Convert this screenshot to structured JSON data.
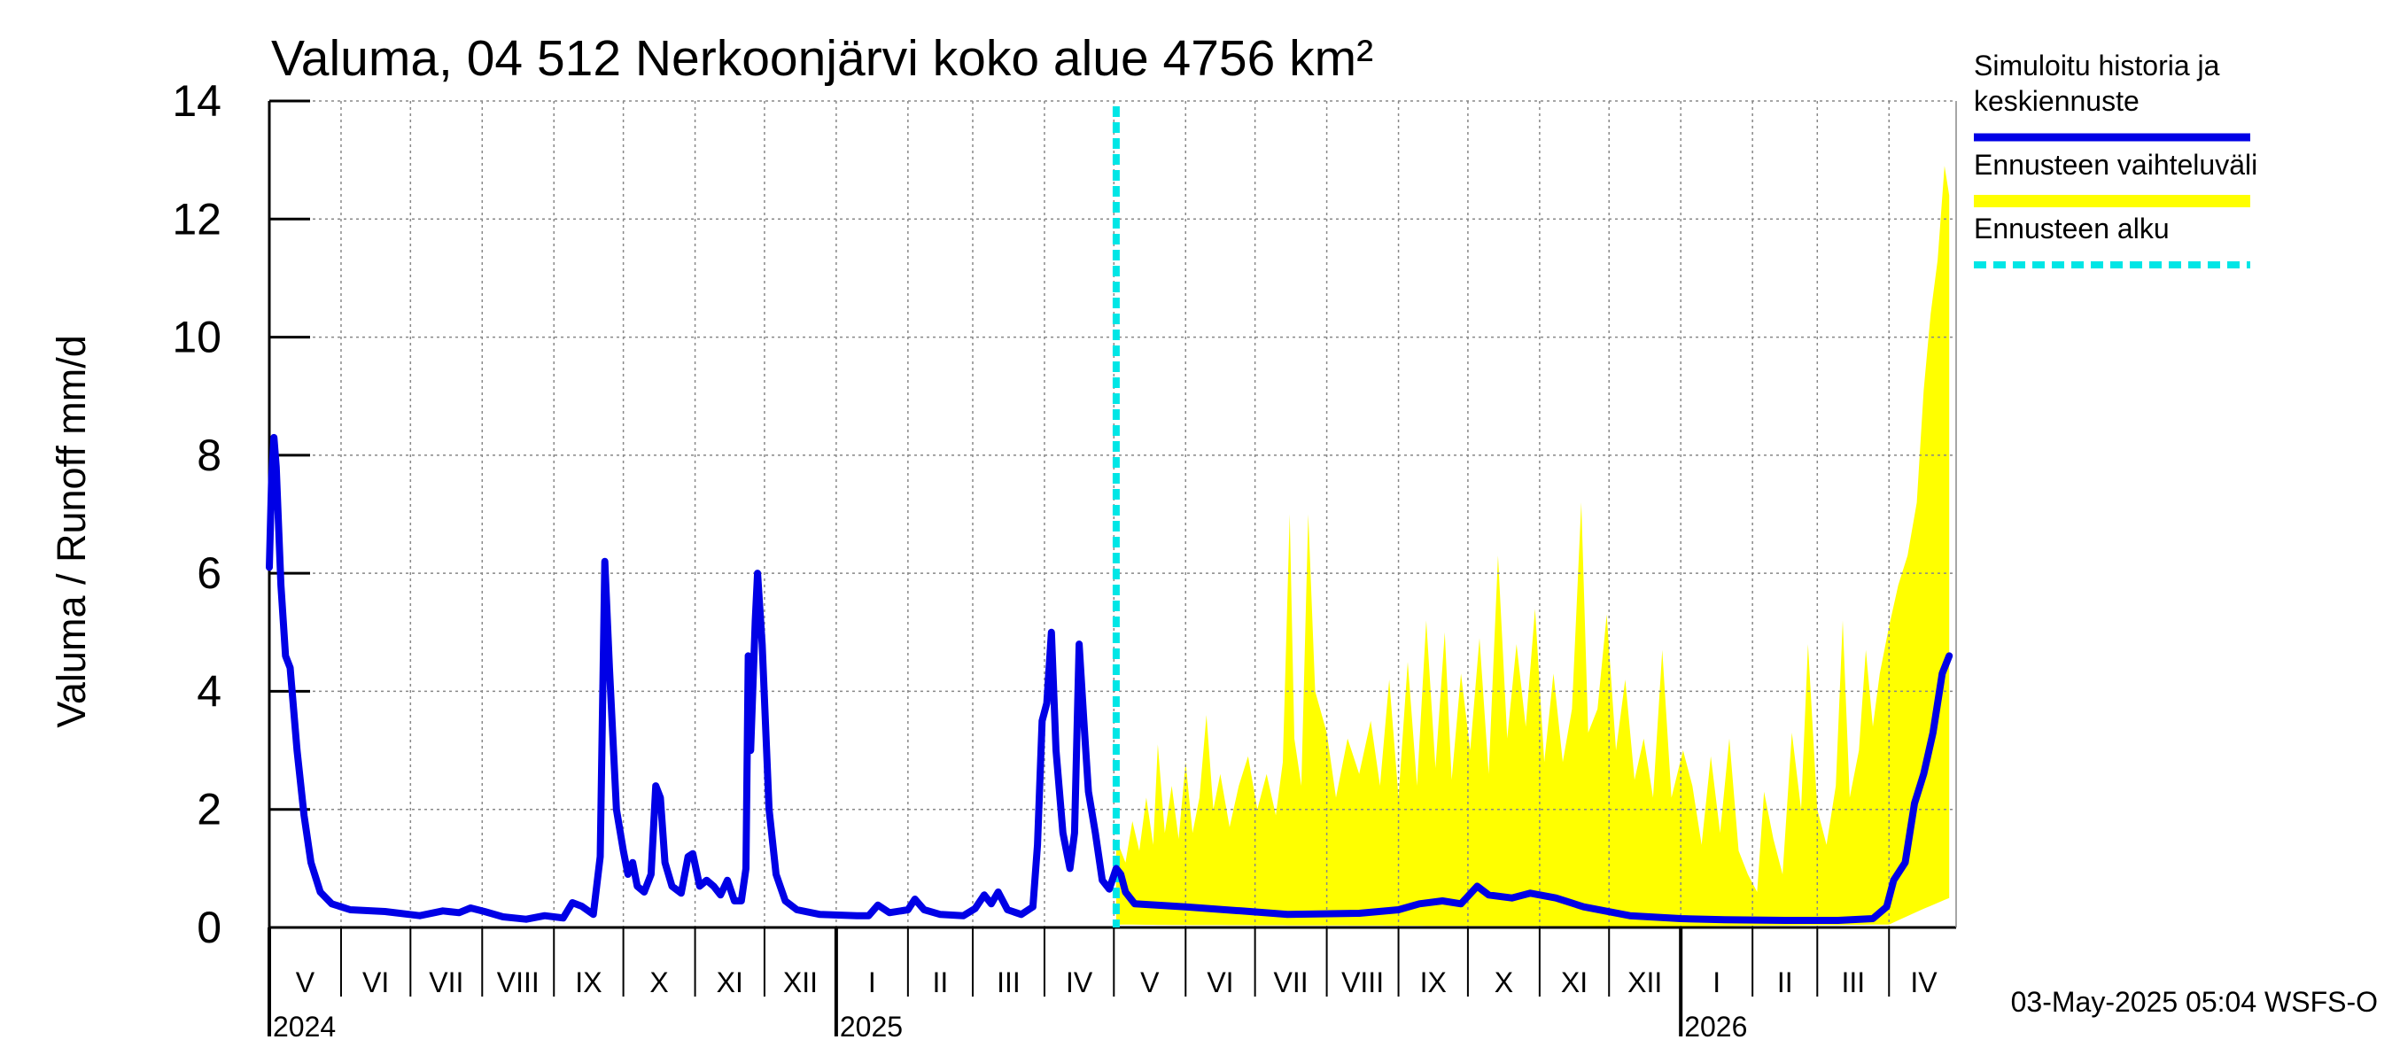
{
  "chart_data": {
    "type": "line",
    "title": "Valuma, 04 512 Nerkoonjärvi koko alue 4756 km²",
    "ylabel": "Valuma / Runoff    mm/d",
    "ylim": [
      0,
      14
    ],
    "yticks": [
      "0",
      "2",
      "4",
      "6",
      "8",
      "10",
      "12",
      "14"
    ],
    "xlim": [
      "2024-05-01",
      "2026-04-30"
    ],
    "grid": true,
    "month_labels": [
      {
        "label": "V",
        "start": "2024-05-01",
        "end": "2024-06-01"
      },
      {
        "label": "VI",
        "start": "2024-06-01",
        "end": "2024-07-01"
      },
      {
        "label": "VII",
        "start": "2024-07-01",
        "end": "2024-08-01"
      },
      {
        "label": "VIII",
        "start": "2024-08-01",
        "end": "2024-09-01"
      },
      {
        "label": "IX",
        "start": "2024-09-01",
        "end": "2024-10-01"
      },
      {
        "label": "X",
        "start": "2024-10-01",
        "end": "2024-11-01"
      },
      {
        "label": "XI",
        "start": "2024-11-01",
        "end": "2024-12-01"
      },
      {
        "label": "XII",
        "start": "2024-12-01",
        "end": "2025-01-01"
      },
      {
        "label": "I",
        "start": "2025-01-01",
        "end": "2025-02-01"
      },
      {
        "label": "II",
        "start": "2025-02-01",
        "end": "2025-03-01"
      },
      {
        "label": "III",
        "start": "2025-03-01",
        "end": "2025-04-01"
      },
      {
        "label": "IV",
        "start": "2025-04-01",
        "end": "2025-05-01"
      },
      {
        "label": "V",
        "start": "2025-05-01",
        "end": "2025-06-01"
      },
      {
        "label": "VI",
        "start": "2025-06-01",
        "end": "2025-07-01"
      },
      {
        "label": "VII",
        "start": "2025-07-01",
        "end": "2025-08-01"
      },
      {
        "label": "VIII",
        "start": "2025-08-01",
        "end": "2025-09-01"
      },
      {
        "label": "IX",
        "start": "2025-09-01",
        "end": "2025-10-01"
      },
      {
        "label": "X",
        "start": "2025-10-01",
        "end": "2025-11-01"
      },
      {
        "label": "XI",
        "start": "2025-11-01",
        "end": "2025-12-01"
      },
      {
        "label": "XII",
        "start": "2025-12-01",
        "end": "2026-01-01"
      },
      {
        "label": "I",
        "start": "2026-01-01",
        "end": "2026-02-01"
      },
      {
        "label": "II",
        "start": "2026-02-01",
        "end": "2026-03-01"
      },
      {
        "label": "III",
        "start": "2026-03-01",
        "end": "2026-04-01"
      },
      {
        "label": "IV",
        "start": "2026-04-01",
        "end": "2026-05-01"
      }
    ],
    "year_labels": [
      {
        "label": "2024",
        "date": "2024-05-01"
      },
      {
        "label": "2025",
        "date": "2025-01-01"
      },
      {
        "label": "2026",
        "date": "2026-01-01"
      }
    ],
    "forecast_start": "2025-05-02",
    "legend": [
      {
        "label_lines": [
          "Simuloitu historia ja",
          "keskiennuste"
        ],
        "color": "#0000e6",
        "style": "line"
      },
      {
        "label_lines": [
          "Ennusteen vaihteluväli"
        ],
        "color": "#ffff00",
        "style": "band"
      },
      {
        "label_lines": [
          "Ennusteen alku"
        ],
        "color": "#00e6e6",
        "style": "dashed"
      }
    ],
    "legend_position": "right",
    "colors": {
      "history": "#0000e6",
      "band": "#ffff00",
      "forecast_start": "#00e6e6",
      "grid": "#888888"
    },
    "series": [
      {
        "name": "Simuloitu historia ja keskiennuste",
        "points": [
          [
            "2024-05-01",
            6.1
          ],
          [
            "2024-05-02",
            7.6
          ],
          [
            "2024-05-03",
            8.3
          ],
          [
            "2024-05-04",
            7.8
          ],
          [
            "2024-05-06",
            5.8
          ],
          [
            "2024-05-08",
            4.6
          ],
          [
            "2024-05-10",
            4.4
          ],
          [
            "2024-05-13",
            3.0
          ],
          [
            "2024-05-16",
            1.9
          ],
          [
            "2024-05-19",
            1.1
          ],
          [
            "2024-05-23",
            0.6
          ],
          [
            "2024-05-28",
            0.4
          ],
          [
            "2024-06-05",
            0.3
          ],
          [
            "2024-06-20",
            0.27
          ],
          [
            "2024-07-05",
            0.2
          ],
          [
            "2024-07-15",
            0.28
          ],
          [
            "2024-07-22",
            0.25
          ],
          [
            "2024-07-27",
            0.33
          ],
          [
            "2024-08-02",
            0.27
          ],
          [
            "2024-08-10",
            0.18
          ],
          [
            "2024-08-20",
            0.14
          ],
          [
            "2024-08-28",
            0.2
          ],
          [
            "2024-09-05",
            0.16
          ],
          [
            "2024-09-09",
            0.42
          ],
          [
            "2024-09-13",
            0.36
          ],
          [
            "2024-09-18",
            0.22
          ],
          [
            "2024-09-21",
            1.2
          ],
          [
            "2024-09-23",
            6.2
          ],
          [
            "2024-09-25",
            4.4
          ],
          [
            "2024-09-28",
            2.0
          ],
          [
            "2024-10-01",
            1.3
          ],
          [
            "2024-10-03",
            0.9
          ],
          [
            "2024-10-05",
            1.1
          ],
          [
            "2024-10-07",
            0.7
          ],
          [
            "2024-10-10",
            0.6
          ],
          [
            "2024-10-13",
            0.9
          ],
          [
            "2024-10-15",
            2.4
          ],
          [
            "2024-10-17",
            2.2
          ],
          [
            "2024-10-19",
            1.1
          ],
          [
            "2024-10-22",
            0.7
          ],
          [
            "2024-10-26",
            0.58
          ],
          [
            "2024-10-29",
            1.2
          ],
          [
            "2024-10-31",
            1.25
          ],
          [
            "2024-11-03",
            0.7
          ],
          [
            "2024-11-06",
            0.8
          ],
          [
            "2024-11-09",
            0.7
          ],
          [
            "2024-11-12",
            0.55
          ],
          [
            "2024-11-15",
            0.8
          ],
          [
            "2024-11-18",
            0.45
          ],
          [
            "2024-11-21",
            0.45
          ],
          [
            "2024-11-23",
            1.0
          ],
          [
            "2024-11-24",
            4.6
          ],
          [
            "2024-11-25",
            3.0
          ],
          [
            "2024-11-27",
            5.2
          ],
          [
            "2024-11-28",
            6.0
          ],
          [
            "2024-11-30",
            4.8
          ],
          [
            "2024-12-03",
            2.0
          ],
          [
            "2024-12-06",
            0.9
          ],
          [
            "2024-12-10",
            0.45
          ],
          [
            "2024-12-15",
            0.3
          ],
          [
            "2024-12-25",
            0.22
          ],
          [
            "2025-01-10",
            0.2
          ],
          [
            "2025-01-15",
            0.2
          ],
          [
            "2025-01-19",
            0.38
          ],
          [
            "2025-01-24",
            0.25
          ],
          [
            "2025-02-01",
            0.3
          ],
          [
            "2025-02-04",
            0.48
          ],
          [
            "2025-02-08",
            0.3
          ],
          [
            "2025-02-15",
            0.22
          ],
          [
            "2025-02-25",
            0.2
          ],
          [
            "2025-03-02",
            0.32
          ],
          [
            "2025-03-06",
            0.55
          ],
          [
            "2025-03-09",
            0.4
          ],
          [
            "2025-03-12",
            0.6
          ],
          [
            "2025-03-16",
            0.3
          ],
          [
            "2025-03-22",
            0.22
          ],
          [
            "2025-03-27",
            0.35
          ],
          [
            "2025-03-29",
            1.4
          ],
          [
            "2025-03-31",
            3.5
          ],
          [
            "2025-04-02",
            3.8
          ],
          [
            "2025-04-04",
            5.0
          ],
          [
            "2025-04-06",
            3.0
          ],
          [
            "2025-04-09",
            1.6
          ],
          [
            "2025-04-12",
            1.0
          ],
          [
            "2025-04-14",
            1.6
          ],
          [
            "2025-04-16",
            4.8
          ],
          [
            "2025-04-18",
            3.5
          ],
          [
            "2025-04-20",
            2.3
          ],
          [
            "2025-04-23",
            1.6
          ],
          [
            "2025-04-26",
            0.8
          ],
          [
            "2025-04-29",
            0.65
          ],
          [
            "2025-05-02",
            1.0
          ],
          [
            "2025-05-04",
            0.9
          ],
          [
            "2025-05-06",
            0.6
          ],
          [
            "2025-05-10",
            0.4
          ],
          [
            "2025-06-01",
            0.35
          ],
          [
            "2025-06-25",
            0.28
          ],
          [
            "2025-07-15",
            0.22
          ],
          [
            "2025-08-15",
            0.24
          ],
          [
            "2025-09-01",
            0.3
          ],
          [
            "2025-09-10",
            0.4
          ],
          [
            "2025-09-20",
            0.45
          ],
          [
            "2025-09-28",
            0.4
          ],
          [
            "2025-10-05",
            0.7
          ],
          [
            "2025-10-10",
            0.55
          ],
          [
            "2025-10-20",
            0.5
          ],
          [
            "2025-10-28",
            0.58
          ],
          [
            "2025-11-08",
            0.5
          ],
          [
            "2025-11-20",
            0.35
          ],
          [
            "2025-12-10",
            0.2
          ],
          [
            "2026-01-01",
            0.15
          ],
          [
            "2026-01-20",
            0.13
          ],
          [
            "2026-02-15",
            0.12
          ],
          [
            "2026-03-10",
            0.12
          ],
          [
            "2026-03-25",
            0.15
          ],
          [
            "2026-03-31",
            0.35
          ],
          [
            "2026-04-03",
            0.8
          ],
          [
            "2026-04-08",
            1.1
          ],
          [
            "2026-04-12",
            2.1
          ],
          [
            "2026-04-16",
            2.6
          ],
          [
            "2026-04-20",
            3.3
          ],
          [
            "2026-04-24",
            4.3
          ],
          [
            "2026-04-27",
            4.6
          ]
        ]
      }
    ],
    "band": {
      "name": "Ennusteen vaihteluväli",
      "lower": [
        [
          "2025-05-02",
          0.05
        ],
        [
          "2025-06-01",
          0.04
        ],
        [
          "2025-09-01",
          0.03
        ],
        [
          "2026-01-01",
          0.02
        ],
        [
          "2026-04-01",
          0.05
        ],
        [
          "2026-04-15",
          0.3
        ],
        [
          "2026-04-27",
          0.5
        ]
      ],
      "upper": [
        [
          "2025-05-02",
          1.5
        ],
        [
          "2025-05-06",
          1.1
        ],
        [
          "2025-05-09",
          1.8
        ],
        [
          "2025-05-12",
          1.3
        ],
        [
          "2025-05-15",
          2.2
        ],
        [
          "2025-05-18",
          1.4
        ],
        [
          "2025-05-20",
          3.1
        ],
        [
          "2025-05-23",
          1.6
        ],
        [
          "2025-05-26",
          2.4
        ],
        [
          "2025-05-29",
          1.5
        ],
        [
          "2025-06-01",
          2.8
        ],
        [
          "2025-06-04",
          1.6
        ],
        [
          "2025-06-07",
          2.2
        ],
        [
          "2025-06-10",
          3.6
        ],
        [
          "2025-06-13",
          2.0
        ],
        [
          "2025-06-16",
          2.6
        ],
        [
          "2025-06-20",
          1.7
        ],
        [
          "2025-06-24",
          2.4
        ],
        [
          "2025-06-28",
          2.9
        ],
        [
          "2025-07-02",
          2.0
        ],
        [
          "2025-07-06",
          2.6
        ],
        [
          "2025-07-10",
          1.9
        ],
        [
          "2025-07-13",
          2.8
        ],
        [
          "2025-07-16",
          7.0
        ],
        [
          "2025-07-18",
          3.2
        ],
        [
          "2025-07-21",
          2.4
        ],
        [
          "2025-07-24",
          7.0
        ],
        [
          "2025-07-27",
          4.0
        ],
        [
          "2025-08-01",
          3.3
        ],
        [
          "2025-08-05",
          2.2
        ],
        [
          "2025-08-10",
          3.2
        ],
        [
          "2025-08-15",
          2.6
        ],
        [
          "2025-08-20",
          3.5
        ],
        [
          "2025-08-24",
          2.4
        ],
        [
          "2025-08-28",
          4.2
        ],
        [
          "2025-09-01",
          2.2
        ],
        [
          "2025-09-05",
          4.5
        ],
        [
          "2025-09-09",
          2.4
        ],
        [
          "2025-09-13",
          5.2
        ],
        [
          "2025-09-17",
          2.7
        ],
        [
          "2025-09-21",
          5.0
        ],
        [
          "2025-09-24",
          2.5
        ],
        [
          "2025-09-28",
          4.3
        ],
        [
          "2025-10-02",
          3.0
        ],
        [
          "2025-10-06",
          4.9
        ],
        [
          "2025-10-10",
          2.6
        ],
        [
          "2025-10-14",
          6.3
        ],
        [
          "2025-10-18",
          3.2
        ],
        [
          "2025-10-22",
          4.8
        ],
        [
          "2025-10-26",
          3.4
        ],
        [
          "2025-10-30",
          5.4
        ],
        [
          "2025-11-03",
          2.8
        ],
        [
          "2025-11-07",
          4.3
        ],
        [
          "2025-11-11",
          2.8
        ],
        [
          "2025-11-15",
          3.7
        ],
        [
          "2025-11-19",
          7.2
        ],
        [
          "2025-11-22",
          3.3
        ],
        [
          "2025-11-26",
          3.7
        ],
        [
          "2025-11-30",
          5.3
        ],
        [
          "2025-12-04",
          3.0
        ],
        [
          "2025-12-08",
          4.2
        ],
        [
          "2025-12-12",
          2.5
        ],
        [
          "2025-12-16",
          3.2
        ],
        [
          "2025-12-20",
          2.2
        ],
        [
          "2025-12-24",
          4.7
        ],
        [
          "2025-12-28",
          2.2
        ],
        [
          "2026-01-02",
          3.0
        ],
        [
          "2026-01-06",
          2.4
        ],
        [
          "2026-01-10",
          1.4
        ],
        [
          "2026-01-14",
          2.9
        ],
        [
          "2026-01-18",
          1.6
        ],
        [
          "2026-01-22",
          3.2
        ],
        [
          "2026-01-26",
          1.3
        ],
        [
          "2026-01-30",
          0.9
        ],
        [
          "2026-02-03",
          0.6
        ],
        [
          "2026-02-06",
          2.3
        ],
        [
          "2026-02-10",
          1.5
        ],
        [
          "2026-02-14",
          0.9
        ],
        [
          "2026-02-18",
          3.3
        ],
        [
          "2026-02-22",
          2.0
        ],
        [
          "2026-02-25",
          4.8
        ],
        [
          "2026-03-01",
          2.0
        ],
        [
          "2026-03-05",
          1.4
        ],
        [
          "2026-03-09",
          2.4
        ],
        [
          "2026-03-12",
          5.2
        ],
        [
          "2026-03-15",
          2.2
        ],
        [
          "2026-03-19",
          3.0
        ],
        [
          "2026-03-22",
          4.7
        ],
        [
          "2026-03-25",
          3.4
        ],
        [
          "2026-03-28",
          4.3
        ],
        [
          "2026-04-01",
          5.1
        ],
        [
          "2026-04-05",
          5.8
        ],
        [
          "2026-04-09",
          6.3
        ],
        [
          "2026-04-13",
          7.2
        ],
        [
          "2026-04-16",
          9.1
        ],
        [
          "2026-04-19",
          10.4
        ],
        [
          "2026-04-22",
          11.3
        ],
        [
          "2026-04-25",
          12.9
        ],
        [
          "2026-04-27",
          12.4
        ]
      ]
    }
  },
  "footer": {
    "timestamp": "03-May-2025 05:04 WSFS-O"
  }
}
